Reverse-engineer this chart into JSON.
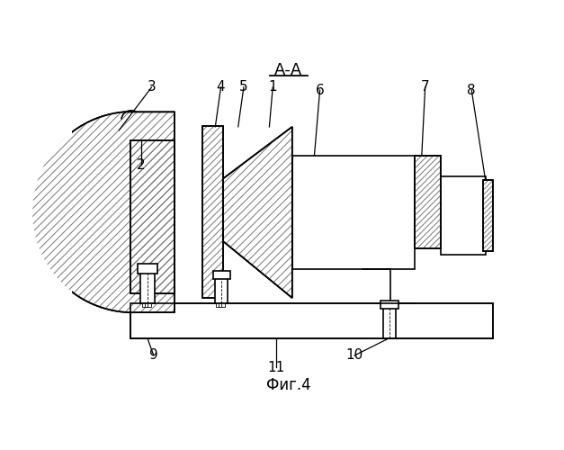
{
  "title": "А-А",
  "caption": "Фиг.4",
  "bg_color": "#ffffff",
  "line_color": "#000000",
  "lw": 1.2
}
